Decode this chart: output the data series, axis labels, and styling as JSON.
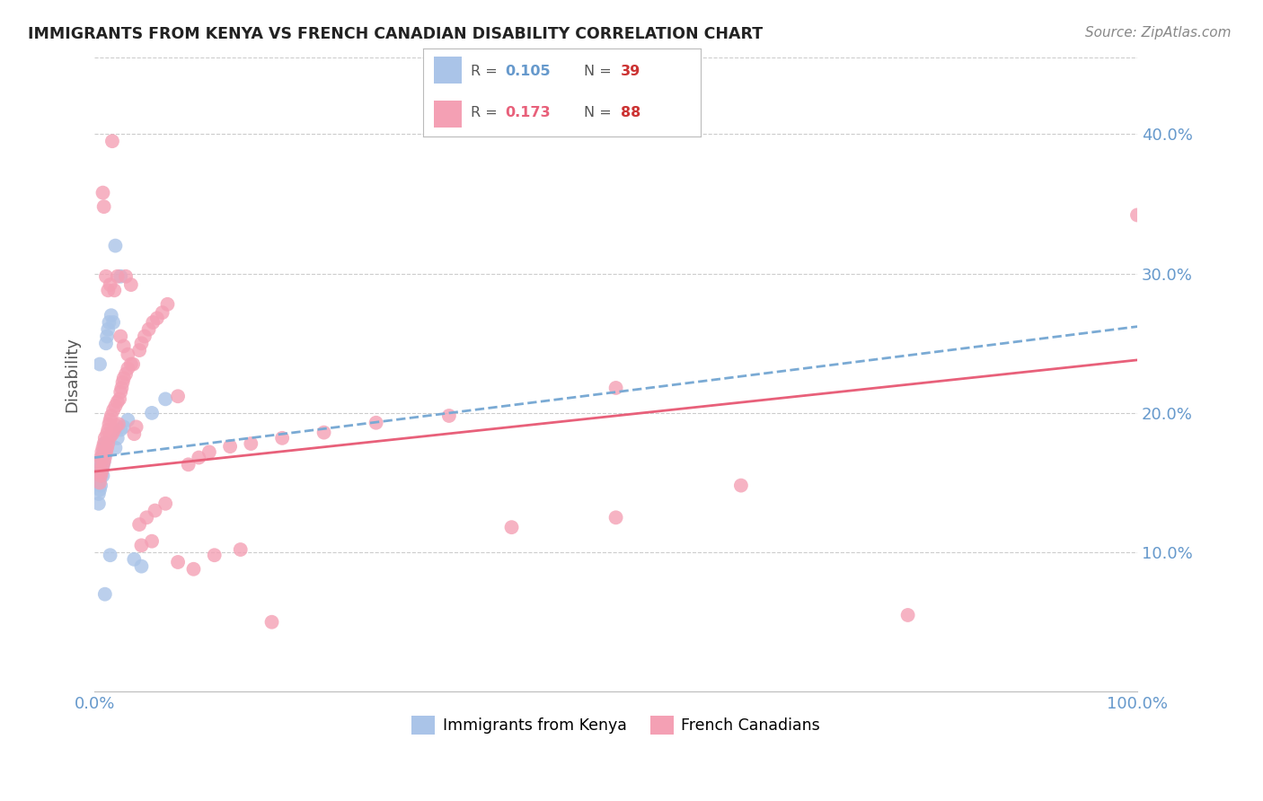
{
  "title": "IMMIGRANTS FROM KENYA VS FRENCH CANADIAN DISABILITY CORRELATION CHART",
  "source": "Source: ZipAtlas.com",
  "ylabel": "Disability",
  "ytick_labels": [
    "40.0%",
    "30.0%",
    "20.0%",
    "10.0%"
  ],
  "ytick_values": [
    0.4,
    0.3,
    0.2,
    0.1
  ],
  "xmin": 0.0,
  "xmax": 1.0,
  "ymin": 0.0,
  "ymax": 0.455,
  "blue_label": "Immigrants from Kenya",
  "pink_label": "French Canadians",
  "background_color": "#ffffff",
  "blue_scatter_color": "#aac4e8",
  "pink_scatter_color": "#f4a0b4",
  "blue_line_color": "#7aaad4",
  "pink_line_color": "#e8607a",
  "grid_color": "#cccccc",
  "axis_label_color": "#6699cc",
  "title_color": "#222222",
  "legend_R_color": "#6699cc",
  "legend_N_color": "#cc3333",
  "blue_points_x": [
    0.003,
    0.004,
    0.004,
    0.004,
    0.005,
    0.005,
    0.005,
    0.006,
    0.006,
    0.006,
    0.007,
    0.007,
    0.008,
    0.008,
    0.008,
    0.009,
    0.009,
    0.01,
    0.01,
    0.011,
    0.012,
    0.013,
    0.014,
    0.016,
    0.018,
    0.02,
    0.022,
    0.025,
    0.028,
    0.032,
    0.038,
    0.045,
    0.055,
    0.068,
    0.01,
    0.015,
    0.02,
    0.025,
    0.005
  ],
  "blue_points_y": [
    0.155,
    0.15,
    0.142,
    0.135,
    0.16,
    0.153,
    0.145,
    0.163,
    0.156,
    0.148,
    0.167,
    0.159,
    0.17,
    0.162,
    0.155,
    0.172,
    0.165,
    0.178,
    0.17,
    0.25,
    0.255,
    0.26,
    0.265,
    0.27,
    0.265,
    0.175,
    0.182,
    0.188,
    0.19,
    0.195,
    0.095,
    0.09,
    0.2,
    0.21,
    0.07,
    0.098,
    0.32,
    0.298,
    0.235
  ],
  "pink_points_x": [
    0.004,
    0.005,
    0.005,
    0.006,
    0.006,
    0.007,
    0.007,
    0.008,
    0.008,
    0.009,
    0.009,
    0.01,
    0.01,
    0.011,
    0.012,
    0.012,
    0.013,
    0.013,
    0.014,
    0.015,
    0.015,
    0.016,
    0.017,
    0.018,
    0.019,
    0.02,
    0.021,
    0.022,
    0.023,
    0.024,
    0.025,
    0.026,
    0.027,
    0.028,
    0.03,
    0.032,
    0.035,
    0.038,
    0.04,
    0.043,
    0.045,
    0.048,
    0.052,
    0.056,
    0.06,
    0.065,
    0.07,
    0.08,
    0.09,
    0.1,
    0.11,
    0.13,
    0.15,
    0.18,
    0.22,
    0.27,
    0.34,
    0.4,
    0.5,
    0.62,
    0.78,
    1.0,
    0.008,
    0.009,
    0.011,
    0.013,
    0.015,
    0.017,
    0.019,
    0.022,
    0.025,
    0.028,
    0.032,
    0.037,
    0.043,
    0.05,
    0.058,
    0.068,
    0.08,
    0.095,
    0.115,
    0.14,
    0.17,
    0.03,
    0.035,
    0.045,
    0.055,
    0.5
  ],
  "pink_points_y": [
    0.158,
    0.15,
    0.165,
    0.155,
    0.168,
    0.158,
    0.172,
    0.162,
    0.175,
    0.165,
    0.178,
    0.168,
    0.182,
    0.172,
    0.185,
    0.175,
    0.188,
    0.178,
    0.192,
    0.195,
    0.183,
    0.198,
    0.185,
    0.202,
    0.188,
    0.205,
    0.191,
    0.208,
    0.192,
    0.21,
    0.215,
    0.218,
    0.222,
    0.225,
    0.228,
    0.232,
    0.235,
    0.185,
    0.19,
    0.245,
    0.25,
    0.255,
    0.26,
    0.265,
    0.268,
    0.272,
    0.278,
    0.212,
    0.163,
    0.168,
    0.172,
    0.176,
    0.178,
    0.182,
    0.186,
    0.193,
    0.198,
    0.118,
    0.125,
    0.148,
    0.055,
    0.342,
    0.358,
    0.348,
    0.298,
    0.288,
    0.292,
    0.395,
    0.288,
    0.298,
    0.255,
    0.248,
    0.242,
    0.235,
    0.12,
    0.125,
    0.13,
    0.135,
    0.093,
    0.088,
    0.098,
    0.102,
    0.05,
    0.298,
    0.292,
    0.105,
    0.108,
    0.218
  ],
  "blue_trend_x0": 0.0,
  "blue_trend_x1": 1.0,
  "blue_trend_y0": 0.168,
  "blue_trend_y1": 0.262,
  "pink_trend_x0": 0.0,
  "pink_trend_x1": 1.0,
  "pink_trend_y0": 0.158,
  "pink_trend_y1": 0.238
}
